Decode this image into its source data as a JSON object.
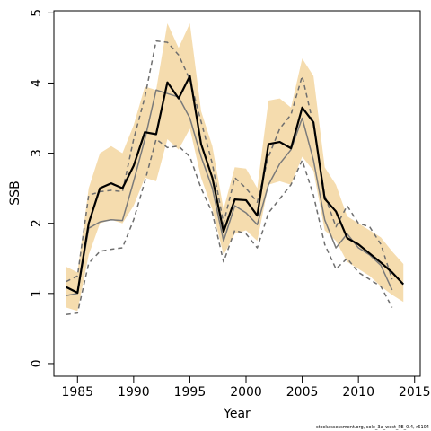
{
  "chart_data": {
    "type": "line",
    "x_label": "Year",
    "y_label": "SSB",
    "footnote": "stockassessment.org, sole_3a_west_PE_0.4, r6104",
    "x": [
      1984,
      1985,
      1986,
      1987,
      1988,
      1989,
      1990,
      1991,
      1992,
      1993,
      1994,
      1995,
      1996,
      1997,
      1998,
      1999,
      2000,
      2001,
      2002,
      2003,
      2004,
      2005,
      2006,
      2007,
      2008,
      2009,
      2010,
      2011,
      2012,
      2013,
      2014
    ],
    "band": {
      "color": "#f5dcae",
      "upper": [
        1.38,
        1.3,
        2.5,
        3.0,
        3.1,
        3.0,
        3.4,
        3.95,
        3.9,
        4.85,
        4.5,
        4.85,
        3.6,
        3.1,
        2.2,
        2.8,
        2.78,
        2.5,
        3.75,
        3.78,
        3.65,
        4.35,
        4.1,
        2.8,
        2.55,
        2.1,
        2.0,
        1.9,
        1.8,
        1.6,
        1.42
      ],
      "lower": [
        0.8,
        0.75,
        1.55,
        2.0,
        2.05,
        2.0,
        2.25,
        2.65,
        2.6,
        3.2,
        3.05,
        3.35,
        2.65,
        2.2,
        1.55,
        1.85,
        1.9,
        1.75,
        2.55,
        2.6,
        2.55,
        2.95,
        2.75,
        1.9,
        1.75,
        1.45,
        1.35,
        1.25,
        1.1,
        0.98,
        0.88
      ]
    },
    "series": [
      {
        "color": "#6e6e6e",
        "dashed": true,
        "width": 1.5,
        "values": [
          1.17,
          1.25,
          2.4,
          2.45,
          2.47,
          2.45,
          3.2,
          3.8,
          4.6,
          4.58,
          4.4,
          4.05,
          3.45,
          2.85,
          2.0,
          2.65,
          2.5,
          2.3,
          2.95,
          3.35,
          3.55,
          4.1,
          3.4,
          2.4,
          1.95,
          2.25,
          2.0,
          1.95,
          1.7,
          1.2,
          null
        ]
      },
      {
        "color": "#6e6e6e",
        "dashed": true,
        "width": 1.5,
        "values": [
          0.7,
          0.72,
          1.43,
          1.6,
          1.63,
          1.65,
          2.05,
          2.6,
          3.2,
          3.08,
          3.1,
          2.95,
          2.5,
          2.15,
          1.45,
          1.9,
          1.85,
          1.65,
          2.15,
          2.35,
          2.55,
          2.9,
          2.4,
          1.7,
          1.35,
          1.5,
          1.3,
          1.2,
          1.1,
          0.8,
          null
        ]
      },
      {
        "color": "#7a7a7a",
        "dashed": false,
        "width": 1.5,
        "values": [
          0.97,
          1.0,
          1.93,
          2.02,
          2.05,
          2.04,
          2.6,
          3.2,
          3.9,
          3.85,
          3.8,
          3.5,
          2.95,
          2.5,
          1.75,
          2.25,
          2.15,
          1.98,
          2.55,
          2.85,
          3.05,
          3.5,
          2.9,
          2.05,
          1.65,
          1.85,
          1.65,
          1.55,
          1.4,
          1.05,
          null
        ]
      },
      {
        "color": "#000000",
        "dashed": false,
        "width": 2.2,
        "values": [
          1.09,
          1.01,
          2.0,
          2.5,
          2.57,
          2.5,
          2.82,
          3.3,
          3.27,
          4.01,
          3.78,
          4.1,
          3.13,
          2.65,
          1.88,
          2.34,
          2.33,
          2.11,
          3.13,
          3.16,
          3.07,
          3.65,
          3.44,
          2.35,
          2.17,
          1.79,
          1.7,
          1.57,
          1.44,
          1.3,
          1.13
        ]
      }
    ],
    "xlim": [
      1982.9,
      2015.5
    ],
    "xticks": [
      1985,
      1990,
      1995,
      2000,
      2005,
      2010,
      2015
    ],
    "ylim": [
      -0.18,
      5.03
    ],
    "yticks": [
      0,
      1,
      2,
      3,
      4,
      5
    ]
  }
}
